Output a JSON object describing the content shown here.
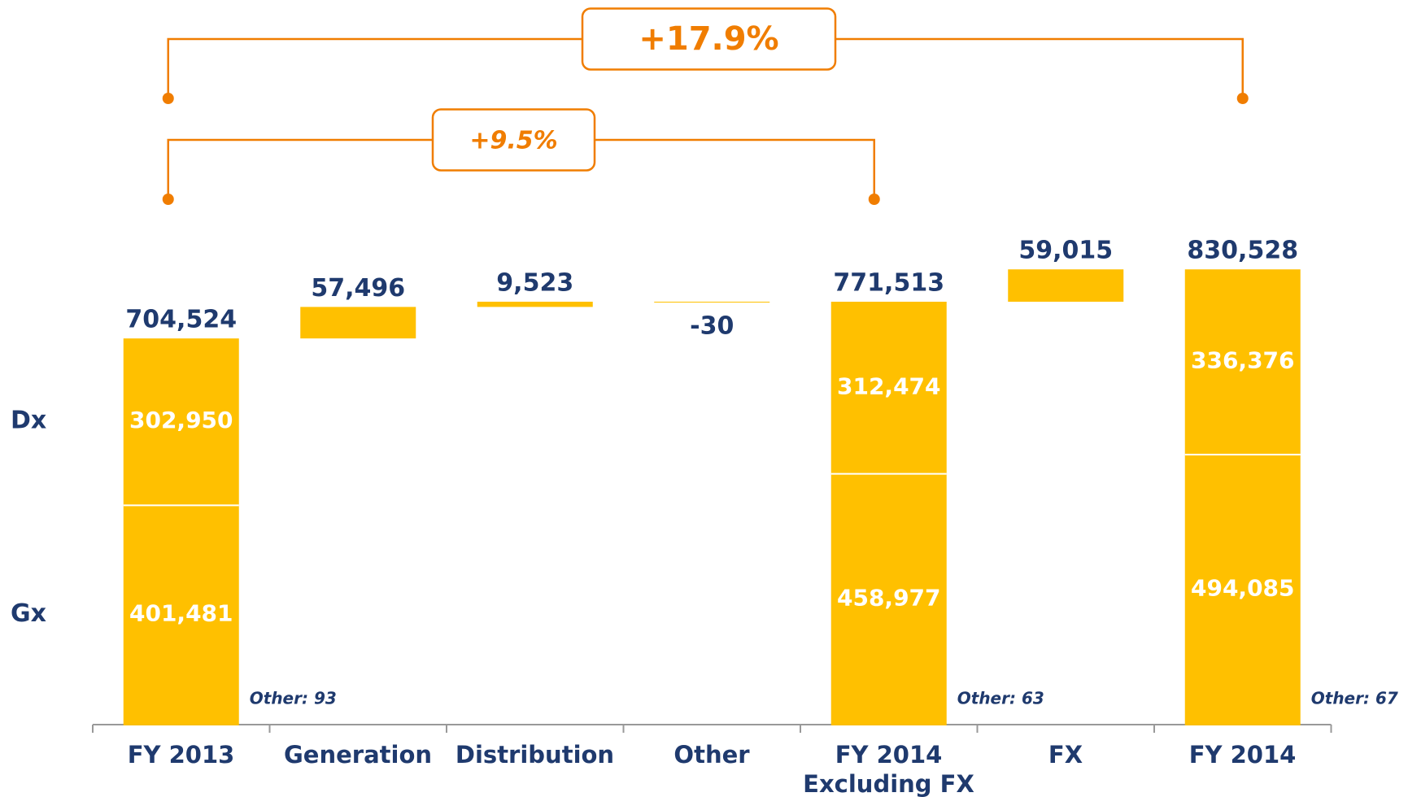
{
  "chart_data": {
    "type": "waterfall",
    "categories": [
      "FY 2013",
      "Generation",
      "Distribution",
      "Other",
      "FY 2014 Excluding FX",
      "FX",
      "FY 2014"
    ],
    "measure": [
      "total",
      "relative",
      "relative",
      "relative",
      "total",
      "relative",
      "total"
    ],
    "values": [
      704524,
      57496,
      9523,
      -30,
      771513,
      59015,
      830528
    ],
    "value_labels": [
      "704,524",
      "57,496",
      "9,523",
      "-30",
      "771,513",
      "59,015",
      "830,528"
    ],
    "color": "#FFC000",
    "series": [
      {
        "name": "Gx",
        "color": "#FFC000",
        "values": [
          401481,
          null,
          null,
          null,
          458977,
          null,
          494085
        ],
        "value_labels": [
          "401,481",
          null,
          null,
          null,
          "458,977",
          null,
          "494,085"
        ]
      },
      {
        "name": "Dx",
        "color": "#FFC000",
        "values": [
          302950,
          null,
          null,
          null,
          312474,
          null,
          336376
        ],
        "value_labels": [
          "302,950",
          null,
          null,
          null,
          "312,474",
          null,
          "336,376"
        ]
      },
      {
        "name": "Other",
        "color": "#FFC000",
        "values": [
          93,
          null,
          null,
          null,
          63,
          null,
          67
        ],
        "value_labels": [
          "Other: 93",
          null,
          null,
          null,
          "Other: 63",
          null,
          "Other: 67"
        ]
      }
    ],
    "annotations": [
      {
        "label": "+17.9%"
      },
      {
        "label": "+9.5%"
      }
    ]
  }
}
